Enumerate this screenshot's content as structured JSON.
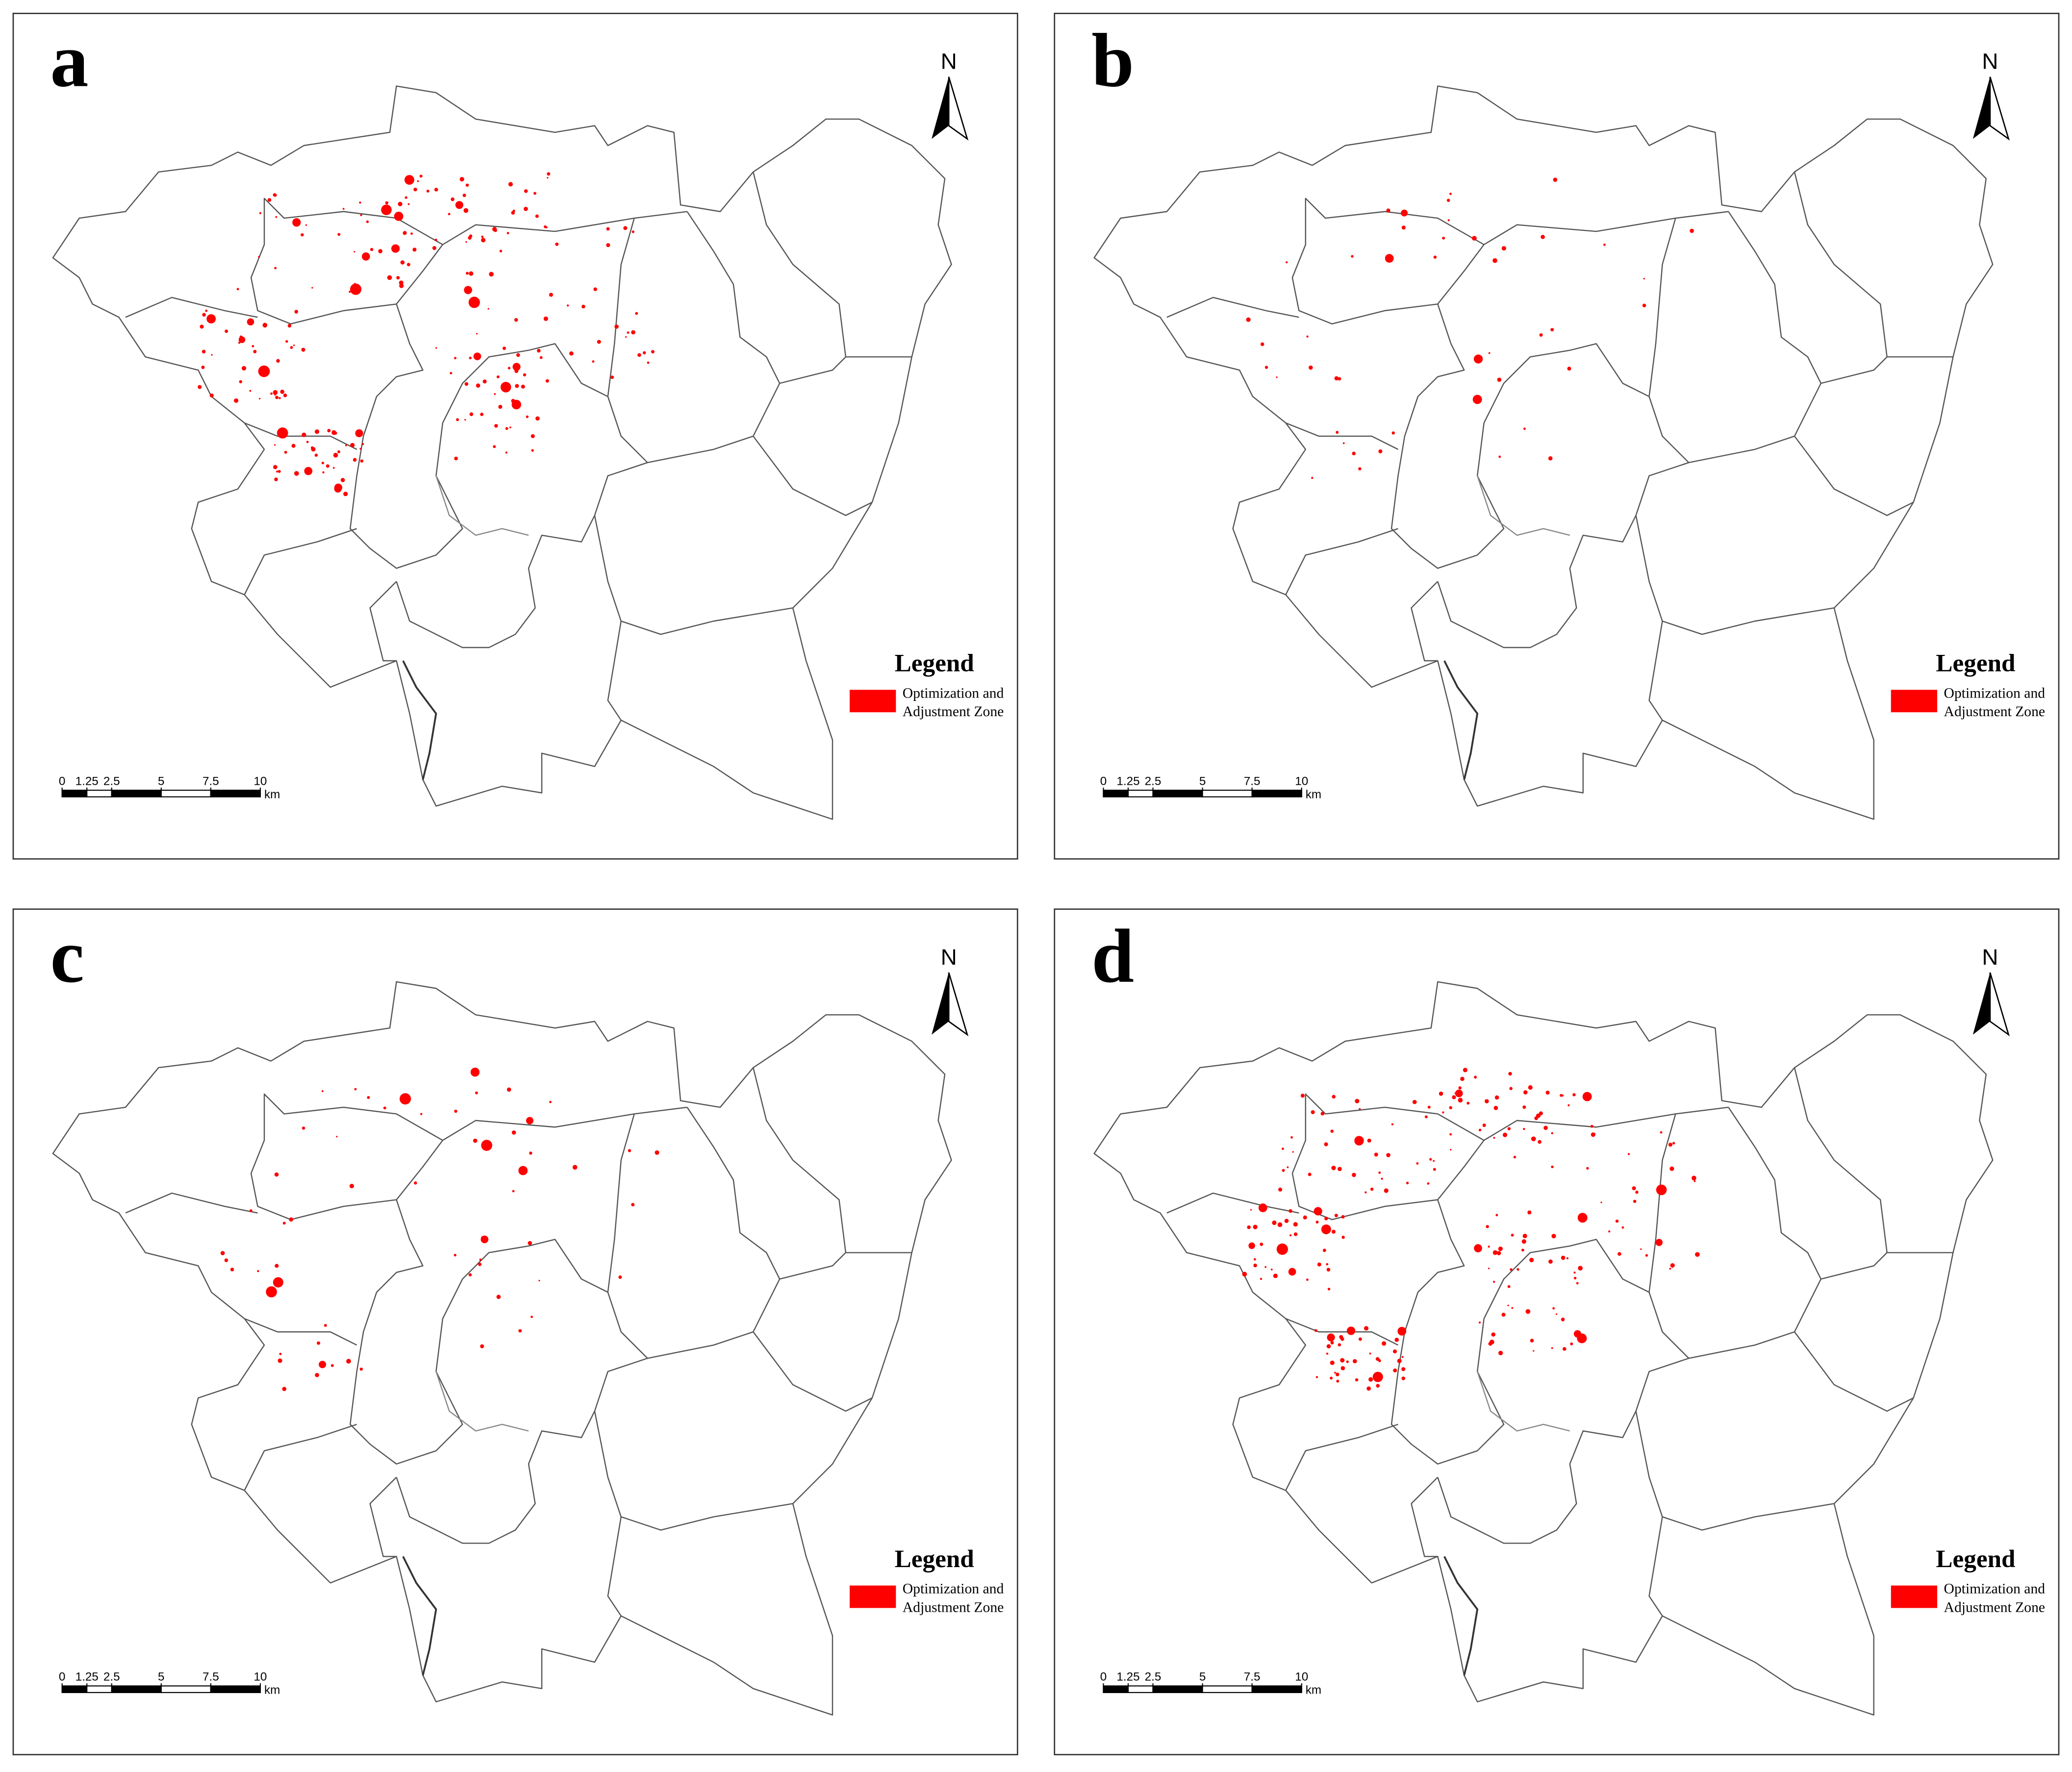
{
  "panels": [
    {
      "label": "a",
      "north": "N",
      "legend": {
        "title": "Legend",
        "item": [
          "Optimization and",
          "Adjustment Zone"
        ]
      },
      "scale": {
        "ticks": [
          0,
          1.25,
          2.5,
          5,
          7.5,
          10
        ],
        "unit": "km"
      }
    },
    {
      "label": "b",
      "north": "N",
      "legend": {
        "title": "Legend",
        "item": [
          "Optimization and",
          "Adjustment Zone"
        ]
      },
      "scale": {
        "ticks": [
          0,
          1.25,
          2.5,
          5,
          7.5,
          10
        ],
        "unit": "km"
      }
    },
    {
      "label": "c",
      "north": "N",
      "legend": {
        "title": "Legend",
        "item": [
          "Optimization and",
          "Adjustment Zone"
        ]
      },
      "scale": {
        "ticks": [
          0,
          1.25,
          2.5,
          5,
          7.5,
          10
        ],
        "unit": "km"
      }
    },
    {
      "label": "d",
      "north": "N",
      "legend": {
        "title": "Legend",
        "item": [
          "Optimization and",
          "Adjustment Zone"
        ]
      },
      "scale": {
        "ticks": [
          0,
          1.25,
          2.5,
          5,
          7.5,
          10
        ],
        "unit": "km"
      }
    }
  ]
}
